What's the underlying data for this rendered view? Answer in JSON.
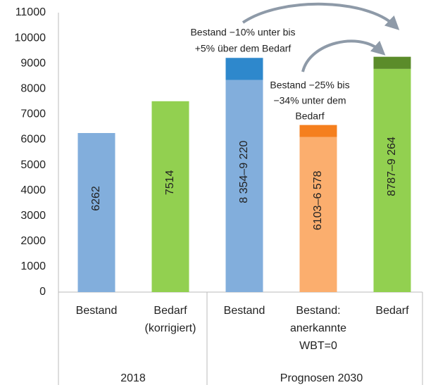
{
  "chart_data": {
    "type": "bar",
    "stacked": true,
    "categories": [
      [
        "Bestand"
      ],
      [
        "Bedarf",
        "(korrigiert)"
      ],
      [
        "Bestand"
      ],
      [
        "Bestand:",
        "anerkannte",
        "WBT=0"
      ],
      [
        "Bedarf"
      ]
    ],
    "groups": [
      {
        "label": "2018",
        "span": 2
      },
      {
        "label": "Prognosen 2030",
        "span": 3
      }
    ],
    "series": [
      {
        "colors": [
          "#82aedc",
          "#92d050",
          "#82aedc",
          "#fbae6e",
          "#92d050"
        ],
        "values": [
          6262,
          7514,
          8354,
          6103,
          8787
        ]
      },
      {
        "colors": [
          "#2e88cc",
          "#2e88cc",
          "#2e88cc",
          "#f57f1e",
          "#5b8c2a"
        ],
        "values": [
          null,
          null,
          866,
          475,
          477
        ]
      }
    ],
    "bar_labels": [
      "6262",
      "7514",
      "8 354–9 220",
      "6103–6 578",
      "8787–9 264"
    ],
    "annotations": [
      {
        "lines": [
          "Bestand −10% unter bis",
          "+5% über dem Bedarf"
        ]
      },
      {
        "lines": [
          "Bestand −25% bis",
          "−34% unter dem",
          "Bedarf"
        ]
      }
    ],
    "ylim": [
      0,
      11000
    ],
    "yticks": [
      0,
      1000,
      2000,
      3000,
      4000,
      5000,
      6000,
      7000,
      8000,
      9000,
      10000,
      11000
    ],
    "grid": false
  }
}
